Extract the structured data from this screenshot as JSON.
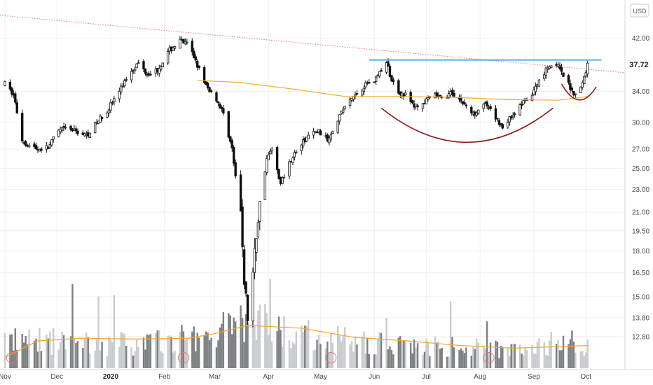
{
  "chart_data": {
    "type": "candlestick",
    "currency": "USD",
    "last_price": "37.72",
    "y_axis_scale": "log",
    "y_ticks": [
      "42.00",
      "34.00",
      "30.00",
      "27.00",
      "25.00",
      "23.00",
      "21.00",
      "19.50",
      "18.00",
      "16.50",
      "15.00",
      "13.80",
      "12.80"
    ],
    "x_ticks": [
      "Nov",
      "Dec",
      "2020",
      "Feb",
      "Mar",
      "Apr",
      "May",
      "Jun",
      "Jul",
      "Aug",
      "Sep",
      "Oct"
    ],
    "bold_x_tick": "2020",
    "ylim": [
      12.2,
      46.5
    ],
    "grid": true,
    "resistance_level": 38.5,
    "price_path": [
      [
        "2019-11-01",
        35.0
      ],
      [
        "2019-11-06",
        33.5
      ],
      [
        "2019-11-11",
        28.0
      ],
      [
        "2019-11-14",
        27.5
      ],
      [
        "2019-11-20",
        27.0
      ],
      [
        "2019-11-26",
        27.2
      ],
      [
        "2019-12-02",
        29.0
      ],
      [
        "2019-12-06",
        29.3
      ],
      [
        "2019-12-12",
        29.0
      ],
      [
        "2019-12-18",
        28.5
      ],
      [
        "2019-12-24",
        30.0
      ],
      [
        "2019-12-30",
        31.5
      ],
      [
        "2020-01-06",
        34.0
      ],
      [
        "2020-01-13",
        37.0
      ],
      [
        "2020-01-17",
        38.0
      ],
      [
        "2020-01-22",
        36.5
      ],
      [
        "2020-01-28",
        37.0
      ],
      [
        "2020-02-04",
        40.0
      ],
      [
        "2020-02-10",
        41.5
      ],
      [
        "2020-02-14",
        41.0
      ],
      [
        "2020-02-19",
        38.5
      ],
      [
        "2020-02-24",
        35.0
      ],
      [
        "2020-03-02",
        33.0
      ],
      [
        "2020-03-06",
        31.0
      ],
      [
        "2020-03-11",
        27.0
      ],
      [
        "2020-03-13",
        24.0
      ],
      [
        "2020-03-16",
        21.0
      ],
      [
        "2020-03-18",
        16.0
      ],
      [
        "2020-03-20",
        13.8
      ],
      [
        "2020-03-23",
        16.5
      ],
      [
        "2020-03-26",
        20.5
      ],
      [
        "2020-03-31",
        26.0
      ],
      [
        "2020-04-03",
        27.0
      ],
      [
        "2020-04-08",
        23.5
      ],
      [
        "2020-04-14",
        26.0
      ],
      [
        "2020-04-20",
        27.5
      ],
      [
        "2020-04-24",
        28.5
      ],
      [
        "2020-04-30",
        29.0
      ],
      [
        "2020-05-05",
        28.0
      ],
      [
        "2020-05-11",
        30.5
      ],
      [
        "2020-05-15",
        32.0
      ],
      [
        "2020-05-21",
        33.5
      ],
      [
        "2020-05-27",
        35.0
      ],
      [
        "2020-06-01",
        35.5
      ],
      [
        "2020-06-05",
        37.0
      ],
      [
        "2020-06-08",
        38.0
      ],
      [
        "2020-06-11",
        35.5
      ],
      [
        "2020-06-15",
        34.0
      ],
      [
        "2020-06-19",
        33.5
      ],
      [
        "2020-06-24",
        32.0
      ],
      [
        "2020-06-30",
        32.5
      ],
      [
        "2020-07-06",
        33.5
      ],
      [
        "2020-07-10",
        33.0
      ],
      [
        "2020-07-16",
        33.8
      ],
      [
        "2020-07-22",
        32.5
      ],
      [
        "2020-07-28",
        31.0
      ],
      [
        "2020-08-03",
        32.5
      ],
      [
        "2020-08-10",
        30.5
      ],
      [
        "2020-08-14",
        29.5
      ],
      [
        "2020-08-20",
        31.0
      ],
      [
        "2020-08-26",
        32.5
      ],
      [
        "2020-08-31",
        33.5
      ],
      [
        "2020-09-04",
        35.5
      ],
      [
        "2020-09-09",
        37.5
      ],
      [
        "2020-09-14",
        38.0
      ],
      [
        "2020-09-17",
        36.5
      ],
      [
        "2020-09-22",
        34.5
      ],
      [
        "2020-09-25",
        33.5
      ],
      [
        "2020-09-29",
        35.0
      ],
      [
        "2020-10-02",
        37.8
      ]
    ],
    "moving_average": [
      [
        "2020-02-20",
        35.5
      ],
      [
        "2020-03-16",
        35.2
      ],
      [
        "2020-04-15",
        34.3
      ],
      [
        "2020-05-15",
        33.3
      ],
      [
        "2020-06-15",
        33.3
      ],
      [
        "2020-07-15",
        33.2
      ],
      [
        "2020-08-15",
        32.9
      ],
      [
        "2020-09-15",
        32.8
      ],
      [
        "2020-10-02",
        33.3
      ]
    ],
    "volume_profile": [
      [
        "2019-11-01",
        0.35
      ],
      [
        "2019-12-01",
        0.32
      ],
      [
        "2020-01-01",
        0.3
      ],
      [
        "2020-02-01",
        0.32
      ],
      [
        "2020-03-01",
        0.42
      ],
      [
        "2020-03-20",
        0.6
      ],
      [
        "2020-04-10",
        0.45
      ],
      [
        "2020-05-10",
        0.35
      ],
      [
        "2020-06-10",
        0.3
      ],
      [
        "2020-07-10",
        0.26
      ],
      [
        "2020-08-10",
        0.24
      ],
      [
        "2020-09-10",
        0.26
      ],
      [
        "2020-10-02",
        0.28
      ]
    ],
    "volume_ma": [
      [
        "2019-11-01",
        0.12
      ],
      [
        "2019-11-20",
        0.3
      ],
      [
        "2019-12-15",
        0.33
      ],
      [
        "2020-01-15",
        0.32
      ],
      [
        "2020-02-15",
        0.33
      ],
      [
        "2020-03-01",
        0.38
      ],
      [
        "2020-03-20",
        0.47
      ],
      [
        "2020-04-20",
        0.44
      ],
      [
        "2020-05-20",
        0.34
      ],
      [
        "2020-06-20",
        0.3
      ],
      [
        "2020-07-20",
        0.25
      ],
      [
        "2020-08-20",
        0.22
      ],
      [
        "2020-09-20",
        0.24
      ],
      [
        "2020-10-02",
        0.25
      ]
    ],
    "annotations": {
      "trendline_color": "#e57373",
      "resistance_color": "#2196f3",
      "ma_color": "#f5a623",
      "cup_color": "#8b1a1a",
      "earnings_marker_color": "#e57373",
      "up_candle_color": "#ffffff",
      "down_candle_color": "#111111"
    }
  }
}
